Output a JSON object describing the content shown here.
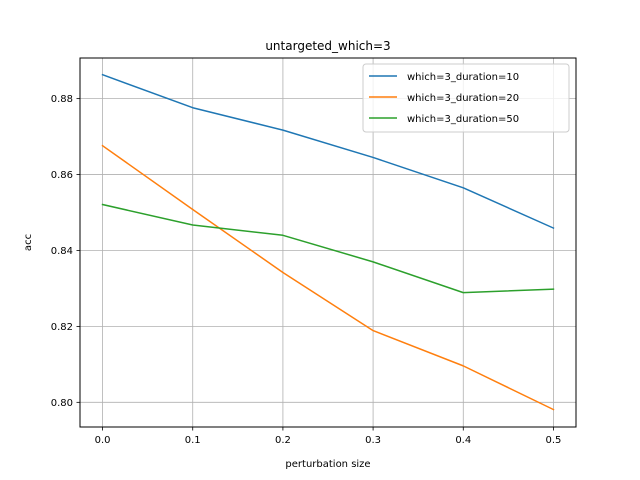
{
  "chart_data": {
    "type": "line",
    "title": "untargeted_which=3",
    "xlabel": "perturbation size",
    "ylabel": "acc",
    "x": [
      0.0,
      0.1,
      0.2,
      0.3,
      0.4,
      0.5
    ],
    "xlim": [
      -0.025,
      0.525
    ],
    "ylim": [
      0.7935,
      0.8907
    ],
    "xticks": [
      0.0,
      0.1,
      0.2,
      0.3,
      0.4,
      0.5
    ],
    "xtick_labels": [
      "0.0",
      "0.1",
      "0.2",
      "0.3",
      "0.4",
      "0.5"
    ],
    "yticks": [
      0.8,
      0.82,
      0.84,
      0.86,
      0.88
    ],
    "ytick_labels": [
      "0.80",
      "0.82",
      "0.84",
      "0.86",
      "0.88"
    ],
    "grid": true,
    "legend_position": "top-right",
    "series": [
      {
        "name": "which=3_duration=10",
        "color": "#1f77b4",
        "values": [
          0.8863,
          0.8776,
          0.8717,
          0.8645,
          0.8565,
          0.8459
        ]
      },
      {
        "name": "which=3_duration=20",
        "color": "#ff7f0e",
        "values": [
          0.8676,
          0.8508,
          0.8342,
          0.8189,
          0.8096,
          0.7981
        ]
      },
      {
        "name": "which=3_duration=50",
        "color": "#2ca02c",
        "values": [
          0.8521,
          0.8467,
          0.844,
          0.837,
          0.8289,
          0.8298
        ]
      }
    ]
  }
}
